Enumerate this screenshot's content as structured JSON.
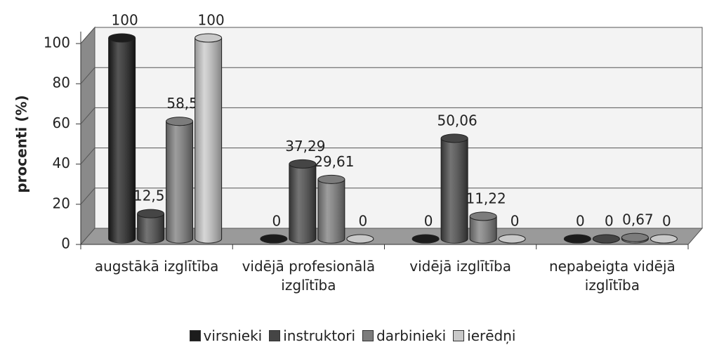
{
  "chart_data": {
    "type": "bar3d",
    "y_axis_label": "procenti (%)",
    "categories": [
      "augstākā izglītība",
      "vidējā profesionālā izglītība",
      "vidējā izglītība",
      "nepabeigta vidējā izglītība"
    ],
    "series": [
      {
        "name": "virsnieki",
        "color": "#1c1c1c",
        "values": [
          100,
          0,
          0,
          0
        ],
        "value_labels": [
          "100",
          "0",
          "0",
          "0"
        ]
      },
      {
        "name": "instruktori",
        "color": "#454545",
        "values": [
          12.55,
          37.29,
          50.06,
          0
        ],
        "value_labels": [
          "12,55",
          "37,29",
          "50,06",
          "0"
        ]
      },
      {
        "name": "darbinieki",
        "color": "#7c7c7c",
        "values": [
          58.5,
          29.61,
          11.22,
          0.67
        ],
        "value_labels": [
          "58,5",
          "29,61",
          "11,22",
          "0,67"
        ]
      },
      {
        "name": "ierēdņi",
        "color": "#c9c9c9",
        "values": [
          100,
          0,
          0,
          0
        ],
        "value_labels": [
          "100",
          "0",
          "0",
          "0"
        ]
      }
    ],
    "ylim": [
      0,
      100
    ],
    "yticks": [
      0,
      20,
      40,
      60,
      80,
      100
    ],
    "grid": true,
    "legend": "bottom"
  }
}
